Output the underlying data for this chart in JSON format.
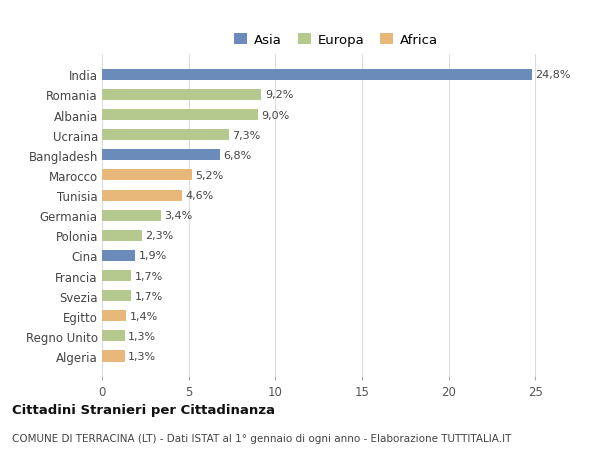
{
  "countries": [
    "India",
    "Romania",
    "Albania",
    "Ucraina",
    "Bangladesh",
    "Marocco",
    "Tunisia",
    "Germania",
    "Polonia",
    "Cina",
    "Francia",
    "Svezia",
    "Egitto",
    "Regno Unito",
    "Algeria"
  ],
  "values": [
    24.8,
    9.2,
    9.0,
    7.3,
    6.8,
    5.2,
    4.6,
    3.4,
    2.3,
    1.9,
    1.7,
    1.7,
    1.4,
    1.3,
    1.3
  ],
  "labels": [
    "24,8%",
    "9,2%",
    "9,0%",
    "7,3%",
    "6,8%",
    "5,2%",
    "4,6%",
    "3,4%",
    "2,3%",
    "1,9%",
    "1,7%",
    "1,7%",
    "1,4%",
    "1,3%",
    "1,3%"
  ],
  "continent": [
    "Asia",
    "Europa",
    "Europa",
    "Europa",
    "Asia",
    "Africa",
    "Africa",
    "Europa",
    "Europa",
    "Asia",
    "Europa",
    "Europa",
    "Africa",
    "Europa",
    "Africa"
  ],
  "colors": {
    "Asia": "#6b8cba",
    "Europa": "#b5c98e",
    "Africa": "#e8b87a"
  },
  "legend_labels": [
    "Asia",
    "Europa",
    "Africa"
  ],
  "legend_colors": [
    "#6b8cba",
    "#b5c98e",
    "#e8b87a"
  ],
  "xlim": [
    0,
    27
  ],
  "xticks": [
    0,
    5,
    10,
    15,
    20,
    25
  ],
  "title": "Cittadini Stranieri per Cittadinanza",
  "subtitle": "COMUNE DI TERRACINA (LT) - Dati ISTAT al 1° gennaio di ogni anno - Elaborazione TUTTITALIA.IT",
  "background_color": "#ffffff",
  "grid_color": "#dddddd",
  "bar_height": 0.55,
  "label_fontsize": 8,
  "ytick_fontsize": 8.5,
  "xtick_fontsize": 8.5,
  "legend_fontsize": 9.5,
  "title_fontsize": 9.5,
  "subtitle_fontsize": 7.5
}
